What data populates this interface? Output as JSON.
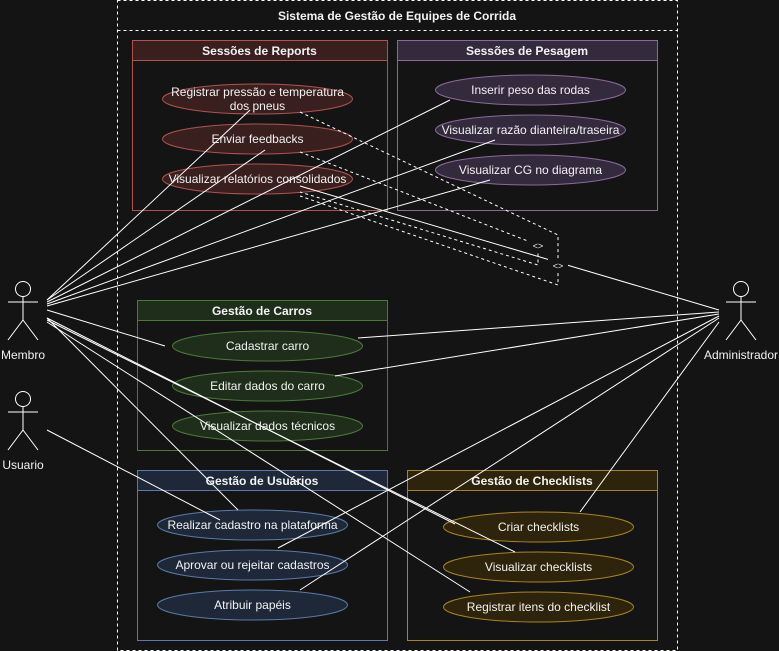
{
  "system": {
    "title": "Sistema de Gestão de Equipes de Corrida"
  },
  "actors": {
    "membro": "Membro",
    "usuario": "Usuario",
    "administrador": "Administrador"
  },
  "packages": {
    "reports": {
      "title": "Sessões de Reports",
      "color": "#b0524f",
      "usecases": [
        "Registrar pressão e temperatura dos pneus",
        "Enviar feedbacks",
        "Visualizar relatórios consolidados"
      ]
    },
    "pesagem": {
      "title": "Sessões de Pesagem",
      "color": "#8a6a98",
      "usecases": [
        "Inserir peso das rodas",
        "Visualizar razão dianteira/traseira",
        "Visualizar CG no diagrama"
      ]
    },
    "carros": {
      "title": "Gestão de Carros",
      "color": "#4a7a3a",
      "usecases": [
        "Cadastrar carro",
        "Editar dados do carro",
        "Visualizar dados técnicos"
      ]
    },
    "usuarios": {
      "title": "Gestão de Usuários",
      "color": "#5a7aa8",
      "usecases": [
        "Realizar cadastro na plataforma",
        "Aprovar ou rejeitar cadastros",
        "Atribuir papéis"
      ]
    },
    "checklists": {
      "title": "Gestão de Checklists",
      "color": "#a88420",
      "usecases": [
        "Criar checklists",
        "Visualizar checklists",
        "Registrar itens do checklist"
      ]
    }
  },
  "extend_labels": [
    "<>",
    "<>"
  ]
}
